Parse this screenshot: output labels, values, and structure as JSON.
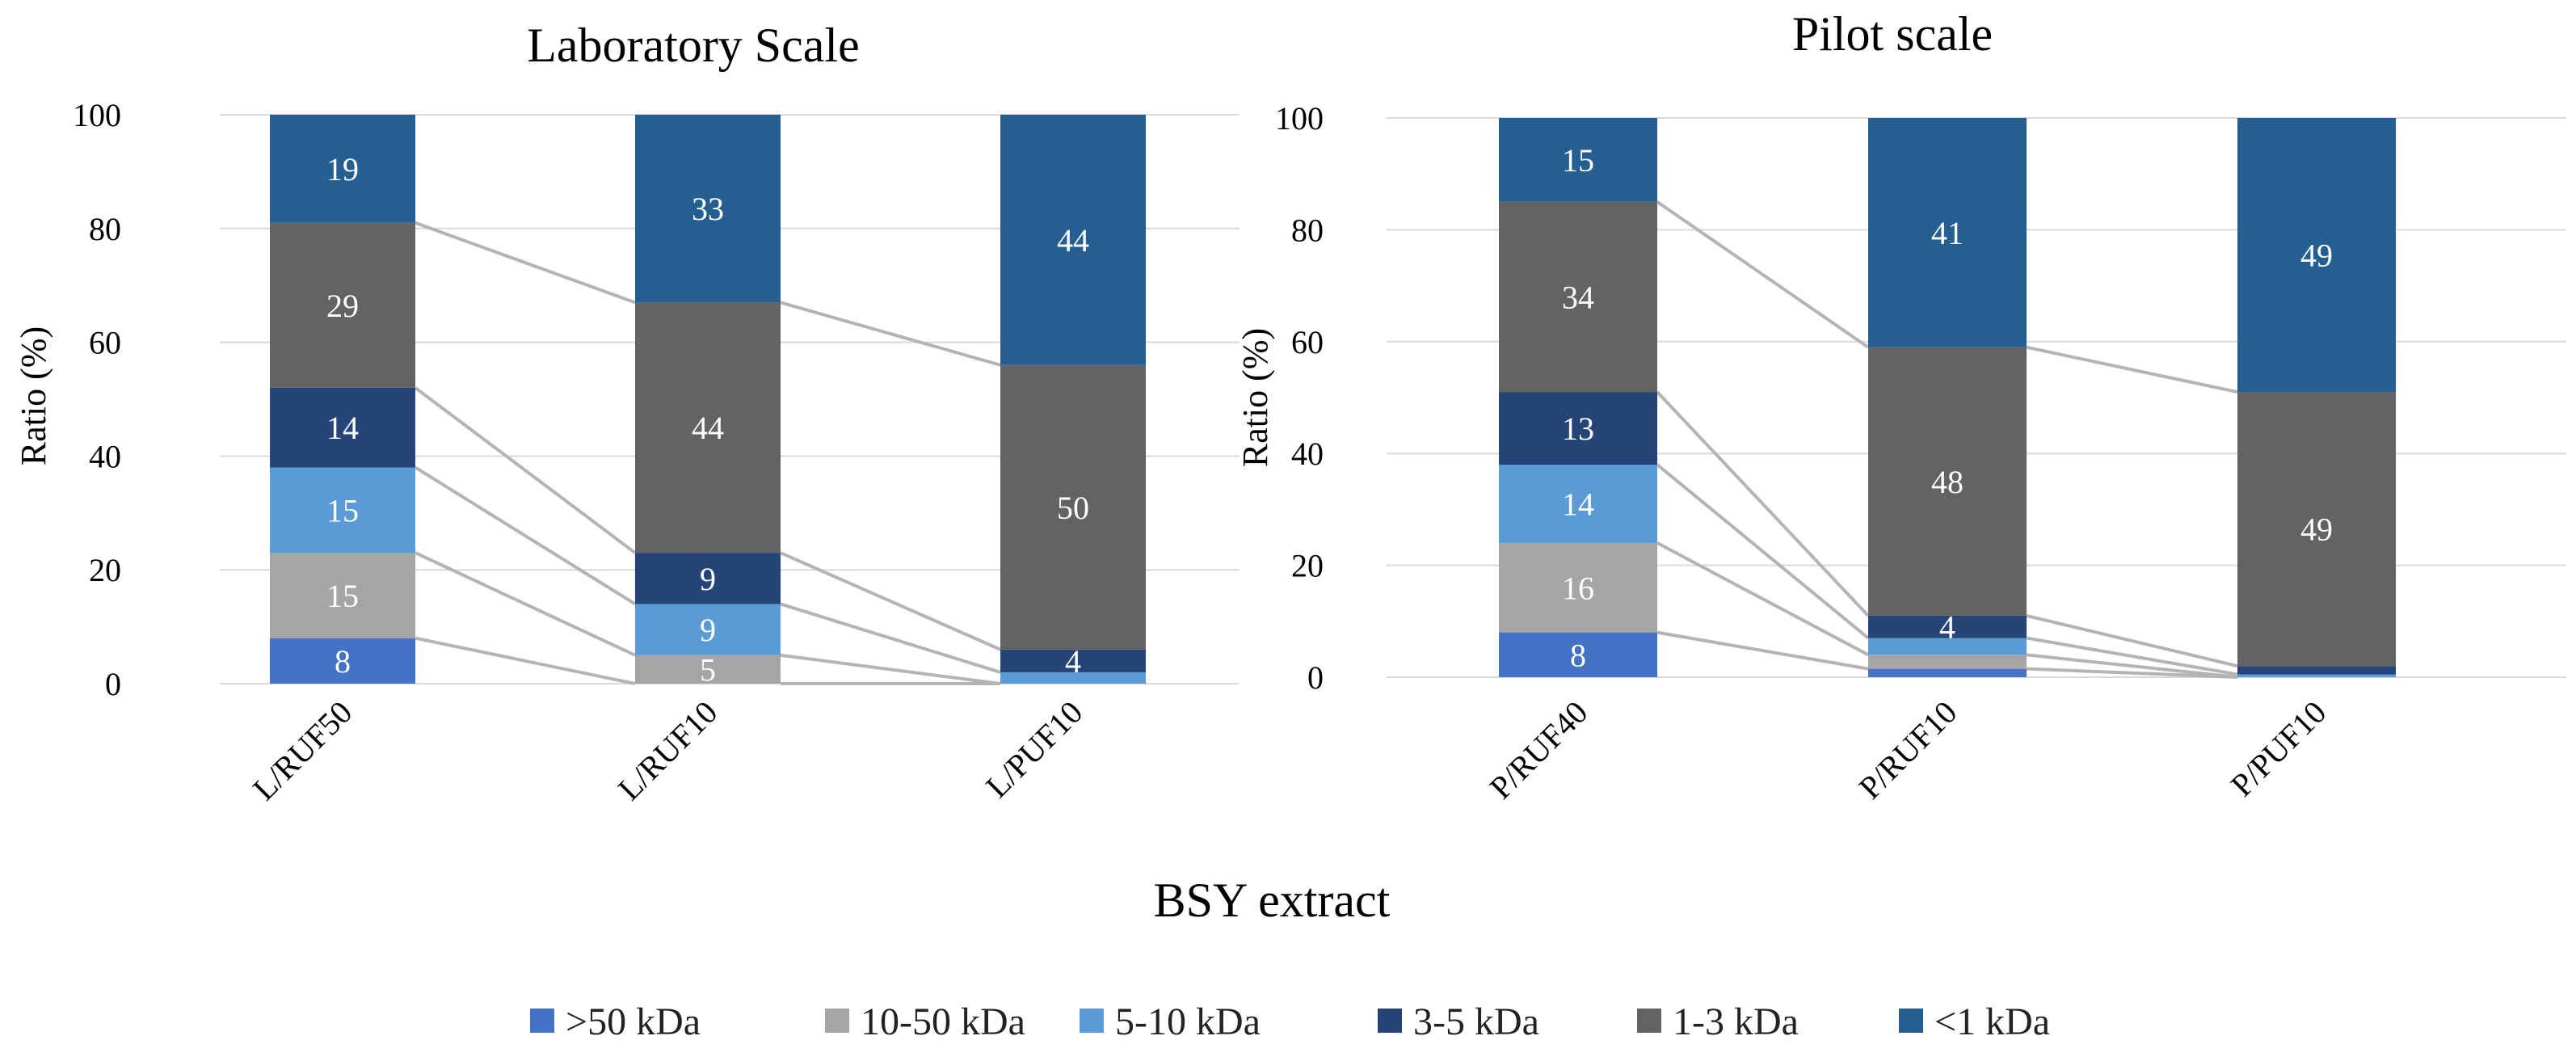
{
  "chart_data": [
    {
      "type": "bar",
      "stacked": true,
      "title": "Laboratory Scale",
      "ylabel": "Ratio (%)",
      "ylim": [
        0,
        100
      ],
      "yticks": [
        "0",
        "20",
        "40",
        "60",
        "80",
        "100"
      ],
      "categories": [
        "L/RUF50",
        "L/RUF10",
        "L/PUF10"
      ],
      "series": [
        {
          "name": ">50 kDa",
          "values": [
            8,
            0,
            0
          ],
          "labels": [
            "8",
            "",
            ""
          ]
        },
        {
          "name": "10-50 kDa",
          "values": [
            15,
            5,
            0
          ],
          "labels": [
            "15",
            "5",
            ""
          ]
        },
        {
          "name": "5-10 kDa",
          "values": [
            15,
            9,
            2
          ],
          "labels": [
            "15",
            "9",
            ""
          ]
        },
        {
          "name": "3-5 kDa",
          "values": [
            14,
            9,
            4
          ],
          "labels": [
            "14",
            "9",
            "4"
          ]
        },
        {
          "name": "1-3 kDa",
          "values": [
            29,
            44,
            50
          ],
          "labels": [
            "29",
            "44",
            "50"
          ]
        },
        {
          "name": "<1 kDa",
          "values": [
            19,
            33,
            44
          ],
          "labels": [
            "19",
            "33",
            "44"
          ]
        }
      ]
    },
    {
      "type": "bar",
      "stacked": true,
      "title": "Pilot scale",
      "ylabel": "Ratio (%)",
      "ylim": [
        0,
        100
      ],
      "yticks": [
        "0",
        "20",
        "40",
        "60",
        "80",
        "100"
      ],
      "categories": [
        "P/RUF40",
        "P/RUF10",
        "P/PUF10"
      ],
      "series": [
        {
          "name": ">50 kDa",
          "values": [
            8,
            1.5,
            0
          ],
          "labels": [
            "8",
            "",
            ""
          ]
        },
        {
          "name": "10-50 kDa",
          "values": [
            16,
            2.5,
            0
          ],
          "labels": [
            "16",
            "",
            ""
          ]
        },
        {
          "name": "5-10 kDa",
          "values": [
            14,
            3,
            0.5
          ],
          "labels": [
            "14",
            "",
            ""
          ]
        },
        {
          "name": "3-5 kDa",
          "values": [
            13,
            4,
            1.5
          ],
          "labels": [
            "13",
            "4",
            ""
          ]
        },
        {
          "name": "1-3 kDa",
          "values": [
            34,
            48,
            49
          ],
          "labels": [
            "34",
            "48",
            "49"
          ]
        },
        {
          "name": "<1 kDa",
          "values": [
            15,
            41,
            49
          ],
          "labels": [
            "15",
            "41",
            "49"
          ]
        }
      ]
    }
  ],
  "xlabel": "BSY extract",
  "legend": [
    {
      "name": ">50 kDa",
      "color": "#4472c4"
    },
    {
      "name": "10-50 kDa",
      "color": "#a5a5a5"
    },
    {
      "name": "5-10 kDa",
      "color": "#5b9bd5"
    },
    {
      "name": "3-5 kDa",
      "color": "#264478"
    },
    {
      "name": "1-3 kDa",
      "color": "#636363"
    },
    {
      "name": "<1 kDa",
      "color": "#255e91"
    }
  ]
}
